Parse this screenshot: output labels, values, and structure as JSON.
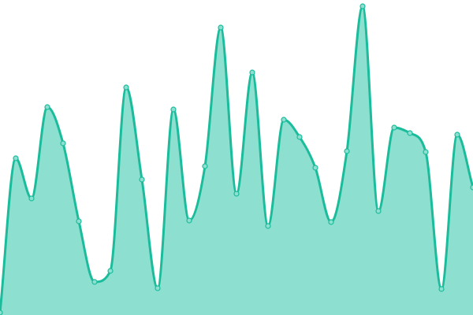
{
  "chart_data": {
    "type": "area",
    "title": "",
    "xlabel": "",
    "ylabel": "",
    "x": [
      0,
      1,
      2,
      3,
      4,
      5,
      6,
      7,
      8,
      9,
      10,
      11,
      12,
      13,
      14,
      15,
      16,
      17,
      18,
      19,
      20,
      21,
      22,
      23,
      24,
      25,
      26,
      27,
      28,
      29,
      30
    ],
    "values": [
      3,
      199,
      148,
      264,
      218,
      119,
      42,
      56,
      289,
      172,
      34,
      261,
      120,
      189,
      365,
      154,
      308,
      113,
      248,
      226,
      187,
      118,
      208,
      392,
      132,
      238,
      231,
      207,
      33,
      229,
      162
    ],
    "ylim": [
      0,
      400
    ],
    "grid": false,
    "legend": "none",
    "interpolation": "smooth",
    "colors": {
      "line": "#1abc9c",
      "fill": "#8de0cf",
      "point_fill": "#8de0cf"
    }
  }
}
